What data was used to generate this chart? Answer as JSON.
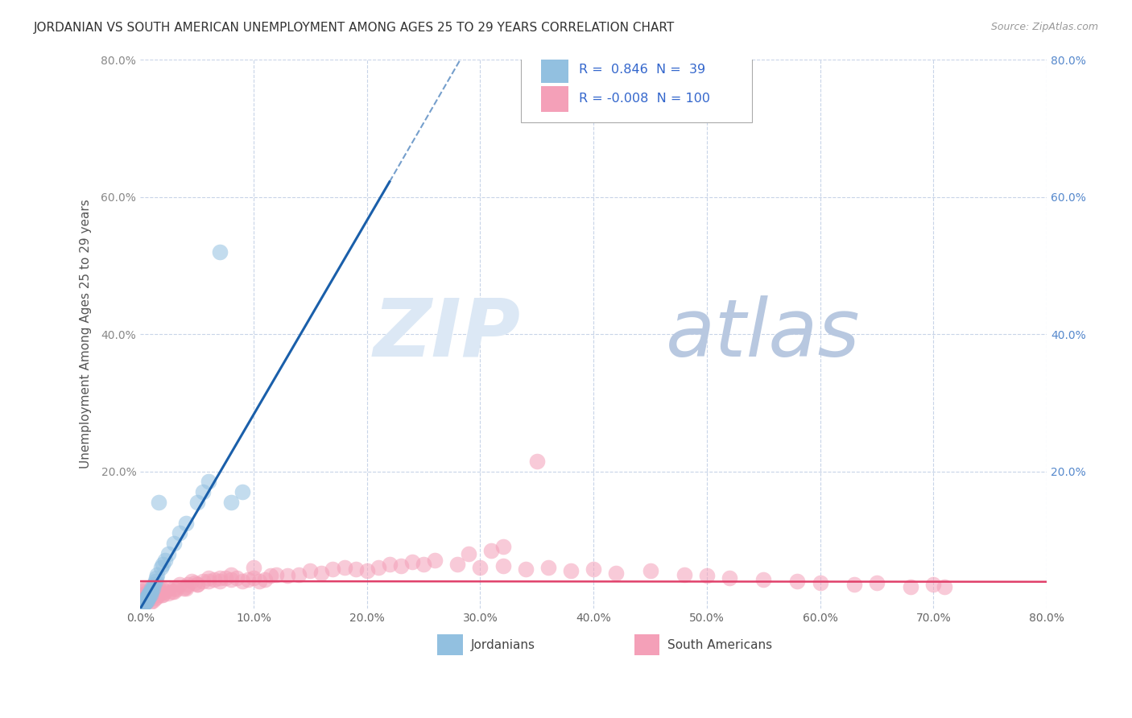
{
  "title": "JORDANIAN VS SOUTH AMERICAN UNEMPLOYMENT AMONG AGES 25 TO 29 YEARS CORRELATION CHART",
  "source": "Source: ZipAtlas.com",
  "ylabel": "Unemployment Among Ages 25 to 29 years",
  "xlim": [
    0.0,
    0.8
  ],
  "ylim": [
    0.0,
    0.8
  ],
  "xticks": [
    0.0,
    0.1,
    0.2,
    0.3,
    0.4,
    0.5,
    0.6,
    0.7,
    0.8
  ],
  "yticks": [
    0.0,
    0.2,
    0.4,
    0.6,
    0.8
  ],
  "xtick_labels": [
    "0.0%",
    "10.0%",
    "20.0%",
    "30.0%",
    "40.0%",
    "50.0%",
    "60.0%",
    "70.0%",
    "80.0%"
  ],
  "ytick_labels": [
    "",
    "20.0%",
    "40.0%",
    "60.0%",
    "80.0%"
  ],
  "jordanian_R": 0.846,
  "jordanian_N": 39,
  "southamerican_R": -0.008,
  "southamerican_N": 100,
  "jordanian_color": "#92c0e0",
  "southamerican_color": "#f4a0b8",
  "jordanian_line_color": "#1a5faa",
  "southamerican_line_color": "#e0406a",
  "background_color": "#ffffff",
  "grid_color": "#c8d4e8",
  "grid_style": "--",
  "watermark_color": "#dce8f5",
  "legend_label_jordanian": "Jordanians",
  "legend_label_southamerican": "South Americans",
  "jordanian_x": [
    0.001,
    0.002,
    0.003,
    0.003,
    0.004,
    0.004,
    0.005,
    0.005,
    0.005,
    0.006,
    0.006,
    0.007,
    0.007,
    0.007,
    0.008,
    0.008,
    0.009,
    0.009,
    0.01,
    0.01,
    0.011,
    0.012,
    0.013,
    0.014,
    0.015,
    0.016,
    0.018,
    0.02,
    0.022,
    0.025,
    0.03,
    0.035,
    0.04,
    0.05,
    0.055,
    0.06,
    0.07,
    0.08,
    0.09
  ],
  "jordanian_y": [
    0.003,
    0.005,
    0.006,
    0.008,
    0.008,
    0.01,
    0.01,
    0.012,
    0.015,
    0.012,
    0.016,
    0.015,
    0.018,
    0.02,
    0.018,
    0.022,
    0.02,
    0.025,
    0.025,
    0.03,
    0.03,
    0.035,
    0.04,
    0.045,
    0.05,
    0.155,
    0.06,
    0.065,
    0.07,
    0.08,
    0.095,
    0.11,
    0.125,
    0.155,
    0.17,
    0.185,
    0.52,
    0.155,
    0.17
  ],
  "southamerican_x": [
    0.001,
    0.002,
    0.003,
    0.004,
    0.005,
    0.006,
    0.007,
    0.008,
    0.009,
    0.01,
    0.011,
    0.012,
    0.013,
    0.014,
    0.015,
    0.016,
    0.017,
    0.018,
    0.019,
    0.02,
    0.022,
    0.025,
    0.028,
    0.03,
    0.032,
    0.035,
    0.038,
    0.04,
    0.042,
    0.045,
    0.048,
    0.05,
    0.055,
    0.06,
    0.065,
    0.07,
    0.075,
    0.08,
    0.085,
    0.09,
    0.095,
    0.1,
    0.105,
    0.11,
    0.115,
    0.12,
    0.13,
    0.14,
    0.15,
    0.16,
    0.17,
    0.18,
    0.19,
    0.2,
    0.21,
    0.22,
    0.23,
    0.24,
    0.25,
    0.26,
    0.28,
    0.3,
    0.32,
    0.34,
    0.36,
    0.38,
    0.4,
    0.42,
    0.45,
    0.48,
    0.5,
    0.52,
    0.55,
    0.58,
    0.6,
    0.63,
    0.65,
    0.68,
    0.7,
    0.71,
    0.003,
    0.005,
    0.007,
    0.009,
    0.011,
    0.013,
    0.015,
    0.02,
    0.025,
    0.03,
    0.04,
    0.05,
    0.06,
    0.07,
    0.08,
    0.1,
    0.35,
    0.32,
    0.31,
    0.29
  ],
  "southamerican_y": [
    0.03,
    0.025,
    0.02,
    0.028,
    0.022,
    0.018,
    0.025,
    0.02,
    0.022,
    0.018,
    0.02,
    0.025,
    0.022,
    0.02,
    0.025,
    0.03,
    0.025,
    0.022,
    0.02,
    0.028,
    0.025,
    0.03,
    0.025,
    0.03,
    0.028,
    0.035,
    0.03,
    0.032,
    0.035,
    0.04,
    0.038,
    0.035,
    0.04,
    0.045,
    0.042,
    0.04,
    0.045,
    0.042,
    0.045,
    0.04,
    0.042,
    0.045,
    0.04,
    0.042,
    0.048,
    0.05,
    0.048,
    0.05,
    0.055,
    0.052,
    0.058,
    0.06,
    0.058,
    0.055,
    0.06,
    0.065,
    0.062,
    0.068,
    0.065,
    0.07,
    0.065,
    0.06,
    0.062,
    0.058,
    0.06,
    0.055,
    0.058,
    0.052,
    0.055,
    0.05,
    0.048,
    0.045,
    0.042,
    0.04,
    0.038,
    0.035,
    0.038,
    0.032,
    0.035,
    0.032,
    0.008,
    0.01,
    0.012,
    0.01,
    0.012,
    0.015,
    0.018,
    0.02,
    0.022,
    0.025,
    0.03,
    0.035,
    0.04,
    0.045,
    0.05,
    0.06,
    0.215,
    0.09,
    0.085,
    0.08
  ],
  "line_intercept_j": -0.005,
  "line_slope_j": 2.85,
  "line_intercept_s": 0.04,
  "line_slope_s": -0.001
}
